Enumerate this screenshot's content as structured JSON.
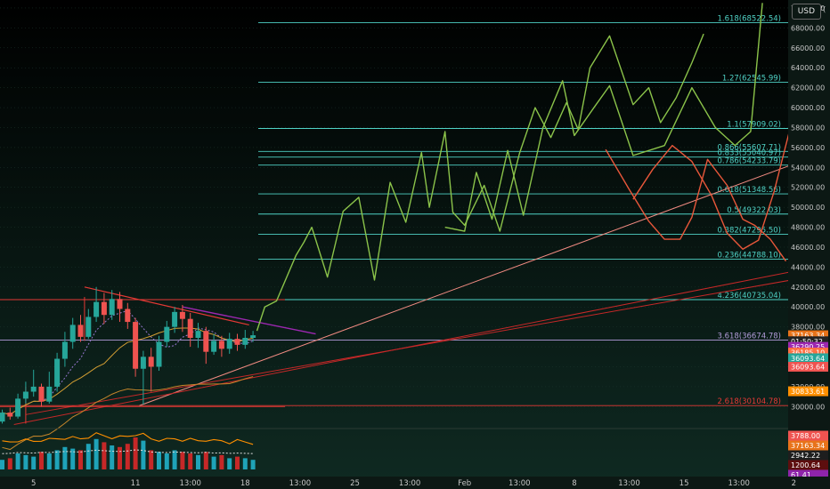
{
  "ui": {
    "currency": "USD"
  },
  "chart_data": {
    "type": "candlestick",
    "ylim": [
      27800,
      70800
    ],
    "y_ticks": [
      30000,
      32000,
      34000,
      36000,
      38000,
      40000,
      42000,
      44000,
      46000,
      48000,
      50000,
      52000,
      54000,
      56000,
      58000,
      60000,
      62000,
      64000,
      66000,
      68000,
      70000
    ],
    "y_tick_labels": [
      "30000.00",
      "32000.00",
      "34000.00",
      "36000.00",
      "38000.00",
      "40000.00",
      "42000.00",
      "44000.00",
      "46000.00",
      "48000.00",
      "50000.00",
      "52000.00",
      "54000.00",
      "56000.00",
      "58000.00",
      "60000.00",
      "62000.00",
      "64000.00",
      "66000.00",
      "68000.00",
      "70000.00"
    ],
    "top_partial_label": "7(",
    "x_ticks": [
      {
        "label": "5",
        "i": 4
      },
      {
        "label": "11",
        "i": 17
      },
      {
        "label": "13:00",
        "i": 24
      },
      {
        "label": "18",
        "i": 31
      },
      {
        "label": "13:00",
        "i": 38
      },
      {
        "label": "25",
        "i": 45
      },
      {
        "label": "13:00",
        "i": 52
      },
      {
        "label": "Feb",
        "i": 59
      },
      {
        "label": "13:00",
        "i": 66
      },
      {
        "label": "8",
        "i": 73
      },
      {
        "label": "13:00",
        "i": 80
      },
      {
        "label": "15",
        "i": 87
      },
      {
        "label": "13:00",
        "i": 94
      },
      {
        "label": "2",
        "i": 101
      }
    ],
    "fib_levels": [
      {
        "label": "1.618(68522.54)",
        "price": 68522.54,
        "color": "#4fd1c5"
      },
      {
        "label": "1.27(62545.99)",
        "price": 62545.99,
        "color": "#4fd1c5"
      },
      {
        "label": "1.1(57909.02)",
        "price": 57909.02,
        "color": "#4fd1c5"
      },
      {
        "label": "0.866(55607.71)",
        "price": 55607.71,
        "color": "#4fd1c5"
      },
      {
        "label": "0.833(55040.97)",
        "price": 55040.97,
        "color": "#4fd1c5"
      },
      {
        "label": "0.786(54233.79)",
        "price": 54233.79,
        "color": "#4fd1c5"
      },
      {
        "label": "0.618(51348.56)",
        "price": 51348.56,
        "color": "#4fd1c5"
      },
      {
        "label": "0.5(49322.03)",
        "price": 49322.03,
        "color": "#4fd1c5"
      },
      {
        "label": "0.382(47295.50)",
        "price": 47295.5,
        "color": "#4fd1c5"
      },
      {
        "label": "0.236(44788.10)",
        "price": 44788.1,
        "color": "#4fd1c5"
      },
      {
        "label": "4.236(40735.04)",
        "price": 40735.04,
        "color": "#4fd1c5"
      },
      {
        "label": "3.618(36674.78)",
        "price": 36674.78,
        "color": "#b39ddb"
      },
      {
        "label": "2.618(30104.78)",
        "price": 30104.78,
        "color": "#e53935"
      }
    ],
    "price_tags": [
      {
        "text": "37163.34",
        "price": 37163.34,
        "color": "#e8731a"
      },
      {
        "text": "01:50:32",
        "price": 36560,
        "color": "#222222"
      },
      {
        "text": "36290.25",
        "price": 35990,
        "color": "#9c27b0"
      },
      {
        "text": "36185.10",
        "price": 35420,
        "color": "#ff7043"
      },
      {
        "text": "36093.64",
        "price": 34850,
        "color": "#26a69a"
      },
      {
        "text": "36093.64",
        "price": 34000,
        "color": "#ef5350"
      },
      {
        "text": "30833.61",
        "price": 31540,
        "color": "#ff8f00"
      }
    ],
    "indicator_tags": [
      {
        "text": "3788.00",
        "color": "#ef5350"
      },
      {
        "text": "37163.34",
        "color": "#e8731a"
      },
      {
        "text": "2942.22",
        "color": "#1e1e1e"
      },
      {
        "text": "1200.64",
        "color": "#5d0e0e"
      },
      {
        "text": "61.41",
        "color": "#8e24aa"
      }
    ],
    "candles": [
      [
        28500,
        29400,
        28300,
        29700
      ],
      [
        29400,
        29000,
        28700,
        29900
      ],
      [
        29000,
        30800,
        28800,
        31300
      ],
      [
        30800,
        31500,
        30300,
        32500
      ],
      [
        31500,
        32000,
        31000,
        33700
      ],
      [
        32000,
        30500,
        30000,
        32300
      ],
      [
        30500,
        32000,
        30300,
        33500
      ],
      [
        32000,
        34800,
        31500,
        35400
      ],
      [
        34800,
        36500,
        34000,
        37500
      ],
      [
        36500,
        38200,
        35800,
        38900
      ],
      [
        38200,
        37000,
        36500,
        39200
      ],
      [
        37000,
        39000,
        36800,
        39800
      ],
      [
        39000,
        40500,
        38500,
        42000
      ],
      [
        40500,
        39200,
        38300,
        41400
      ],
      [
        39200,
        40800,
        38700,
        41700
      ],
      [
        40800,
        39800,
        38500,
        41500
      ],
      [
        39800,
        38500,
        37800,
        40400
      ],
      [
        38500,
        33800,
        33000,
        38900
      ],
      [
        33800,
        35000,
        30200,
        35600
      ],
      [
        35000,
        34000,
        31500,
        35900
      ],
      [
        34000,
        36500,
        33600,
        37100
      ],
      [
        36500,
        38000,
        36000,
        38600
      ],
      [
        38000,
        39500,
        37400,
        40000
      ],
      [
        39500,
        38800,
        37500,
        40200
      ],
      [
        38800,
        36900,
        36000,
        39400
      ],
      [
        36900,
        37600,
        35900,
        38400
      ],
      [
        37600,
        35500,
        34300,
        38000
      ],
      [
        35500,
        36600,
        35200,
        37300
      ],
      [
        36600,
        35800,
        35000,
        37100
      ],
      [
        35800,
        36800,
        35300,
        37400
      ],
      [
        36800,
        36200,
        35600,
        37300
      ],
      [
        36200,
        36900,
        35800,
        37700
      ],
      [
        36900,
        37160,
        36500,
        37600
      ]
    ],
    "volume": [
      0.3,
      0.35,
      0.5,
      0.45,
      0.4,
      0.55,
      0.5,
      0.6,
      0.7,
      0.65,
      0.6,
      0.8,
      0.95,
      0.85,
      0.75,
      0.7,
      0.8,
      1.0,
      0.9,
      0.6,
      0.55,
      0.5,
      0.6,
      0.55,
      0.5,
      0.45,
      0.55,
      0.4,
      0.45,
      0.35,
      0.4,
      0.35,
      0.3
    ],
    "green_projection": [
      [
        32.5,
        37600
      ],
      [
        33.5,
        40000
      ],
      [
        35,
        40600
      ],
      [
        37.5,
        45200
      ],
      [
        38.5,
        46500
      ],
      [
        39.5,
        48000
      ],
      [
        41.5,
        43000
      ],
      [
        43.5,
        49600
      ],
      [
        45.5,
        51000
      ],
      [
        47.5,
        42700
      ],
      [
        49.5,
        52500
      ],
      [
        51.5,
        48500
      ],
      [
        53.5,
        55500
      ],
      [
        54.5,
        50000
      ],
      [
        56.5,
        57600
      ],
      [
        57.5,
        49500
      ],
      [
        59,
        48200
      ],
      [
        61.5,
        52200
      ],
      [
        63.5,
        47600
      ],
      [
        66,
        55400
      ],
      [
        68,
        60000
      ],
      [
        70,
        57000
      ],
      [
        72,
        60500
      ],
      [
        73.5,
        57800
      ],
      [
        75,
        64000
      ],
      [
        77.5,
        67200
      ],
      [
        80.5,
        60300
      ],
      [
        82.5,
        62000
      ],
      [
        84,
        58500
      ],
      [
        86,
        61000
      ],
      [
        88,
        64500
      ],
      [
        89.5,
        67400
      ]
    ],
    "green_projection_2": [
      [
        56.5,
        48000
      ],
      [
        59,
        47600
      ],
      [
        60.5,
        53500
      ],
      [
        62.5,
        48800
      ],
      [
        64.5,
        55700
      ],
      [
        66.5,
        49200
      ],
      [
        69,
        58000
      ],
      [
        71.5,
        62700
      ],
      [
        73,
        57200
      ],
      [
        75.5,
        60000
      ],
      [
        77.5,
        62200
      ],
      [
        80.5,
        55200
      ],
      [
        84.5,
        56200
      ],
      [
        88,
        62000
      ],
      [
        91,
        58000
      ],
      [
        93.5,
        56200
      ],
      [
        95.5,
        57600
      ],
      [
        97,
        70500
      ]
    ],
    "red_projection": [
      [
        77,
        55800
      ],
      [
        80,
        51800
      ],
      [
        82.5,
        48600
      ],
      [
        84.5,
        46800
      ],
      [
        86.5,
        46800
      ],
      [
        88,
        49000
      ],
      [
        90,
        54800
      ],
      [
        92.5,
        52200
      ],
      [
        94.5,
        48800
      ],
      [
        96,
        48200
      ],
      [
        98,
        46800
      ],
      [
        100,
        44600
      ]
    ],
    "red_projection_2": [
      [
        80.5,
        50800
      ],
      [
        83,
        53800
      ],
      [
        85.5,
        56200
      ],
      [
        88,
        54600
      ],
      [
        90.5,
        51200
      ],
      [
        92.5,
        47400
      ],
      [
        94.5,
        45800
      ],
      [
        96.5,
        46700
      ],
      [
        98.5,
        51600
      ],
      [
        100.5,
        57800
      ],
      [
        102.5,
        62200
      ]
    ]
  }
}
